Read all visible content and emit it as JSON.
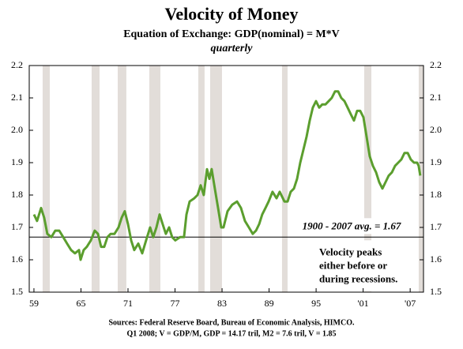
{
  "chart_data": {
    "type": "line",
    "title": "Velocity of Money",
    "subtitle": "Equation of Exchange: GDP(nominal) = M*V",
    "frequency": "quarterly",
    "xlim": [
      1958.4,
      2008.7
    ],
    "xticks": [
      {
        "value": 1959,
        "label": "59"
      },
      {
        "value": 1965,
        "label": "65"
      },
      {
        "value": 1971,
        "label": "71"
      },
      {
        "value": 1977,
        "label": "77"
      },
      {
        "value": 1983,
        "label": "83"
      },
      {
        "value": 1989,
        "label": "89"
      },
      {
        "value": 1995,
        "label": "95"
      },
      {
        "value": 2001,
        "label": "'01"
      },
      {
        "value": 2007,
        "label": "'07"
      }
    ],
    "ylim": [
      1.5,
      2.2
    ],
    "yticks": [
      {
        "value": 1.5,
        "label": "1.5"
      },
      1.6,
      1.7,
      1.8,
      1.9,
      {
        "value": 2.0,
        "label": "2.0"
      },
      2.1,
      2.2
    ],
    "recessions": [
      [
        1960.11,
        1961.02
      ],
      [
        1966.36,
        1967.37
      ],
      [
        1969.69,
        1970.79
      ],
      [
        1973.72,
        1975.13
      ],
      [
        1979.97,
        1980.77
      ],
      [
        1981.48,
        1982.99
      ],
      [
        1990.65,
        1991.36
      ],
      [
        2001.14,
        2002.05
      ],
      [
        2008.09,
        2008.7
      ]
    ],
    "recession_color": "#e2ddd9",
    "average": 1.67,
    "average_label": "1900 - 2007 avg. = 1.67",
    "note_lines": [
      "Velocity peaks",
      "either before or",
      "during recessions."
    ],
    "sources": [
      "Sources: Federal Reserve Board, Bureau of Economic Analysis, HIMCO.",
      "Q1 2008; V = GDP/M, GDP = 14.17 tril, M2 = 7.6 tril, V = 1.85"
    ],
    "series": [
      {
        "name": "Velocity",
        "color": "#5b9e2e",
        "x": [
          1959.0,
          1959.4,
          1959.91,
          1960.31,
          1960.71,
          1961.22,
          1961.72,
          1962.23,
          1962.73,
          1963.23,
          1963.74,
          1964.24,
          1964.75,
          1964.95,
          1965.35,
          1965.75,
          1966.26,
          1966.76,
          1967.17,
          1967.57,
          1967.97,
          1968.38,
          1968.78,
          1969.28,
          1969.79,
          1970.19,
          1970.59,
          1971.0,
          1971.4,
          1971.8,
          1972.31,
          1972.81,
          1973.31,
          1973.82,
          1974.22,
          1974.63,
          1975.03,
          1975.43,
          1975.83,
          1976.24,
          1976.64,
          1977.04,
          1977.65,
          1978.15,
          1978.46,
          1978.86,
          1979.46,
          1979.87,
          1980.27,
          1980.67,
          1981.08,
          1981.38,
          1981.68,
          1982.08,
          1982.49,
          1982.89,
          1983.19,
          1983.7,
          1984.3,
          1984.91,
          1985.41,
          1985.92,
          1986.42,
          1986.92,
          1987.33,
          1987.73,
          1988.13,
          1988.54,
          1988.94,
          1989.44,
          1989.95,
          1990.35,
          1990.96,
          1991.36,
          1991.76,
          1992.17,
          1992.57,
          1992.97,
          1993.38,
          1993.78,
          1994.18,
          1994.58,
          1994.99,
          1995.39,
          1995.79,
          1996.2,
          1996.6,
          1997.0,
          1997.41,
          1997.81,
          1998.21,
          1998.62,
          1999.02,
          1999.42,
          1999.83,
          2000.23,
          2000.63,
          2001.04,
          2001.44,
          2001.84,
          2002.25,
          2002.65,
          2003.05,
          2003.46,
          2003.86,
          2004.26,
          2004.67,
          2005.07,
          2005.47,
          2005.88,
          2006.28,
          2006.68,
          2007.08,
          2007.49,
          2007.89,
          2008.09,
          2008.29
        ],
        "values": [
          1.74,
          1.72,
          1.76,
          1.73,
          1.68,
          1.67,
          1.69,
          1.69,
          1.67,
          1.65,
          1.63,
          1.62,
          1.63,
          1.6,
          1.63,
          1.64,
          1.66,
          1.69,
          1.68,
          1.64,
          1.64,
          1.67,
          1.68,
          1.68,
          1.7,
          1.73,
          1.75,
          1.71,
          1.66,
          1.63,
          1.65,
          1.62,
          1.66,
          1.7,
          1.67,
          1.7,
          1.74,
          1.71,
          1.68,
          1.7,
          1.67,
          1.66,
          1.67,
          1.67,
          1.74,
          1.78,
          1.79,
          1.8,
          1.83,
          1.8,
          1.88,
          1.85,
          1.88,
          1.82,
          1.76,
          1.7,
          1.7,
          1.75,
          1.77,
          1.78,
          1.76,
          1.72,
          1.7,
          1.68,
          1.69,
          1.71,
          1.74,
          1.76,
          1.78,
          1.81,
          1.79,
          1.81,
          1.78,
          1.78,
          1.81,
          1.82,
          1.85,
          1.9,
          1.94,
          1.98,
          2.03,
          2.07,
          2.09,
          2.07,
          2.08,
          2.08,
          2.09,
          2.1,
          2.12,
          2.12,
          2.1,
          2.09,
          2.07,
          2.05,
          2.03,
          2.06,
          2.06,
          2.04,
          1.98,
          1.92,
          1.89,
          1.87,
          1.84,
          1.82,
          1.84,
          1.86,
          1.87,
          1.89,
          1.9,
          1.91,
          1.93,
          1.93,
          1.91,
          1.9,
          1.9,
          1.89,
          1.86
        ]
      }
    ]
  }
}
